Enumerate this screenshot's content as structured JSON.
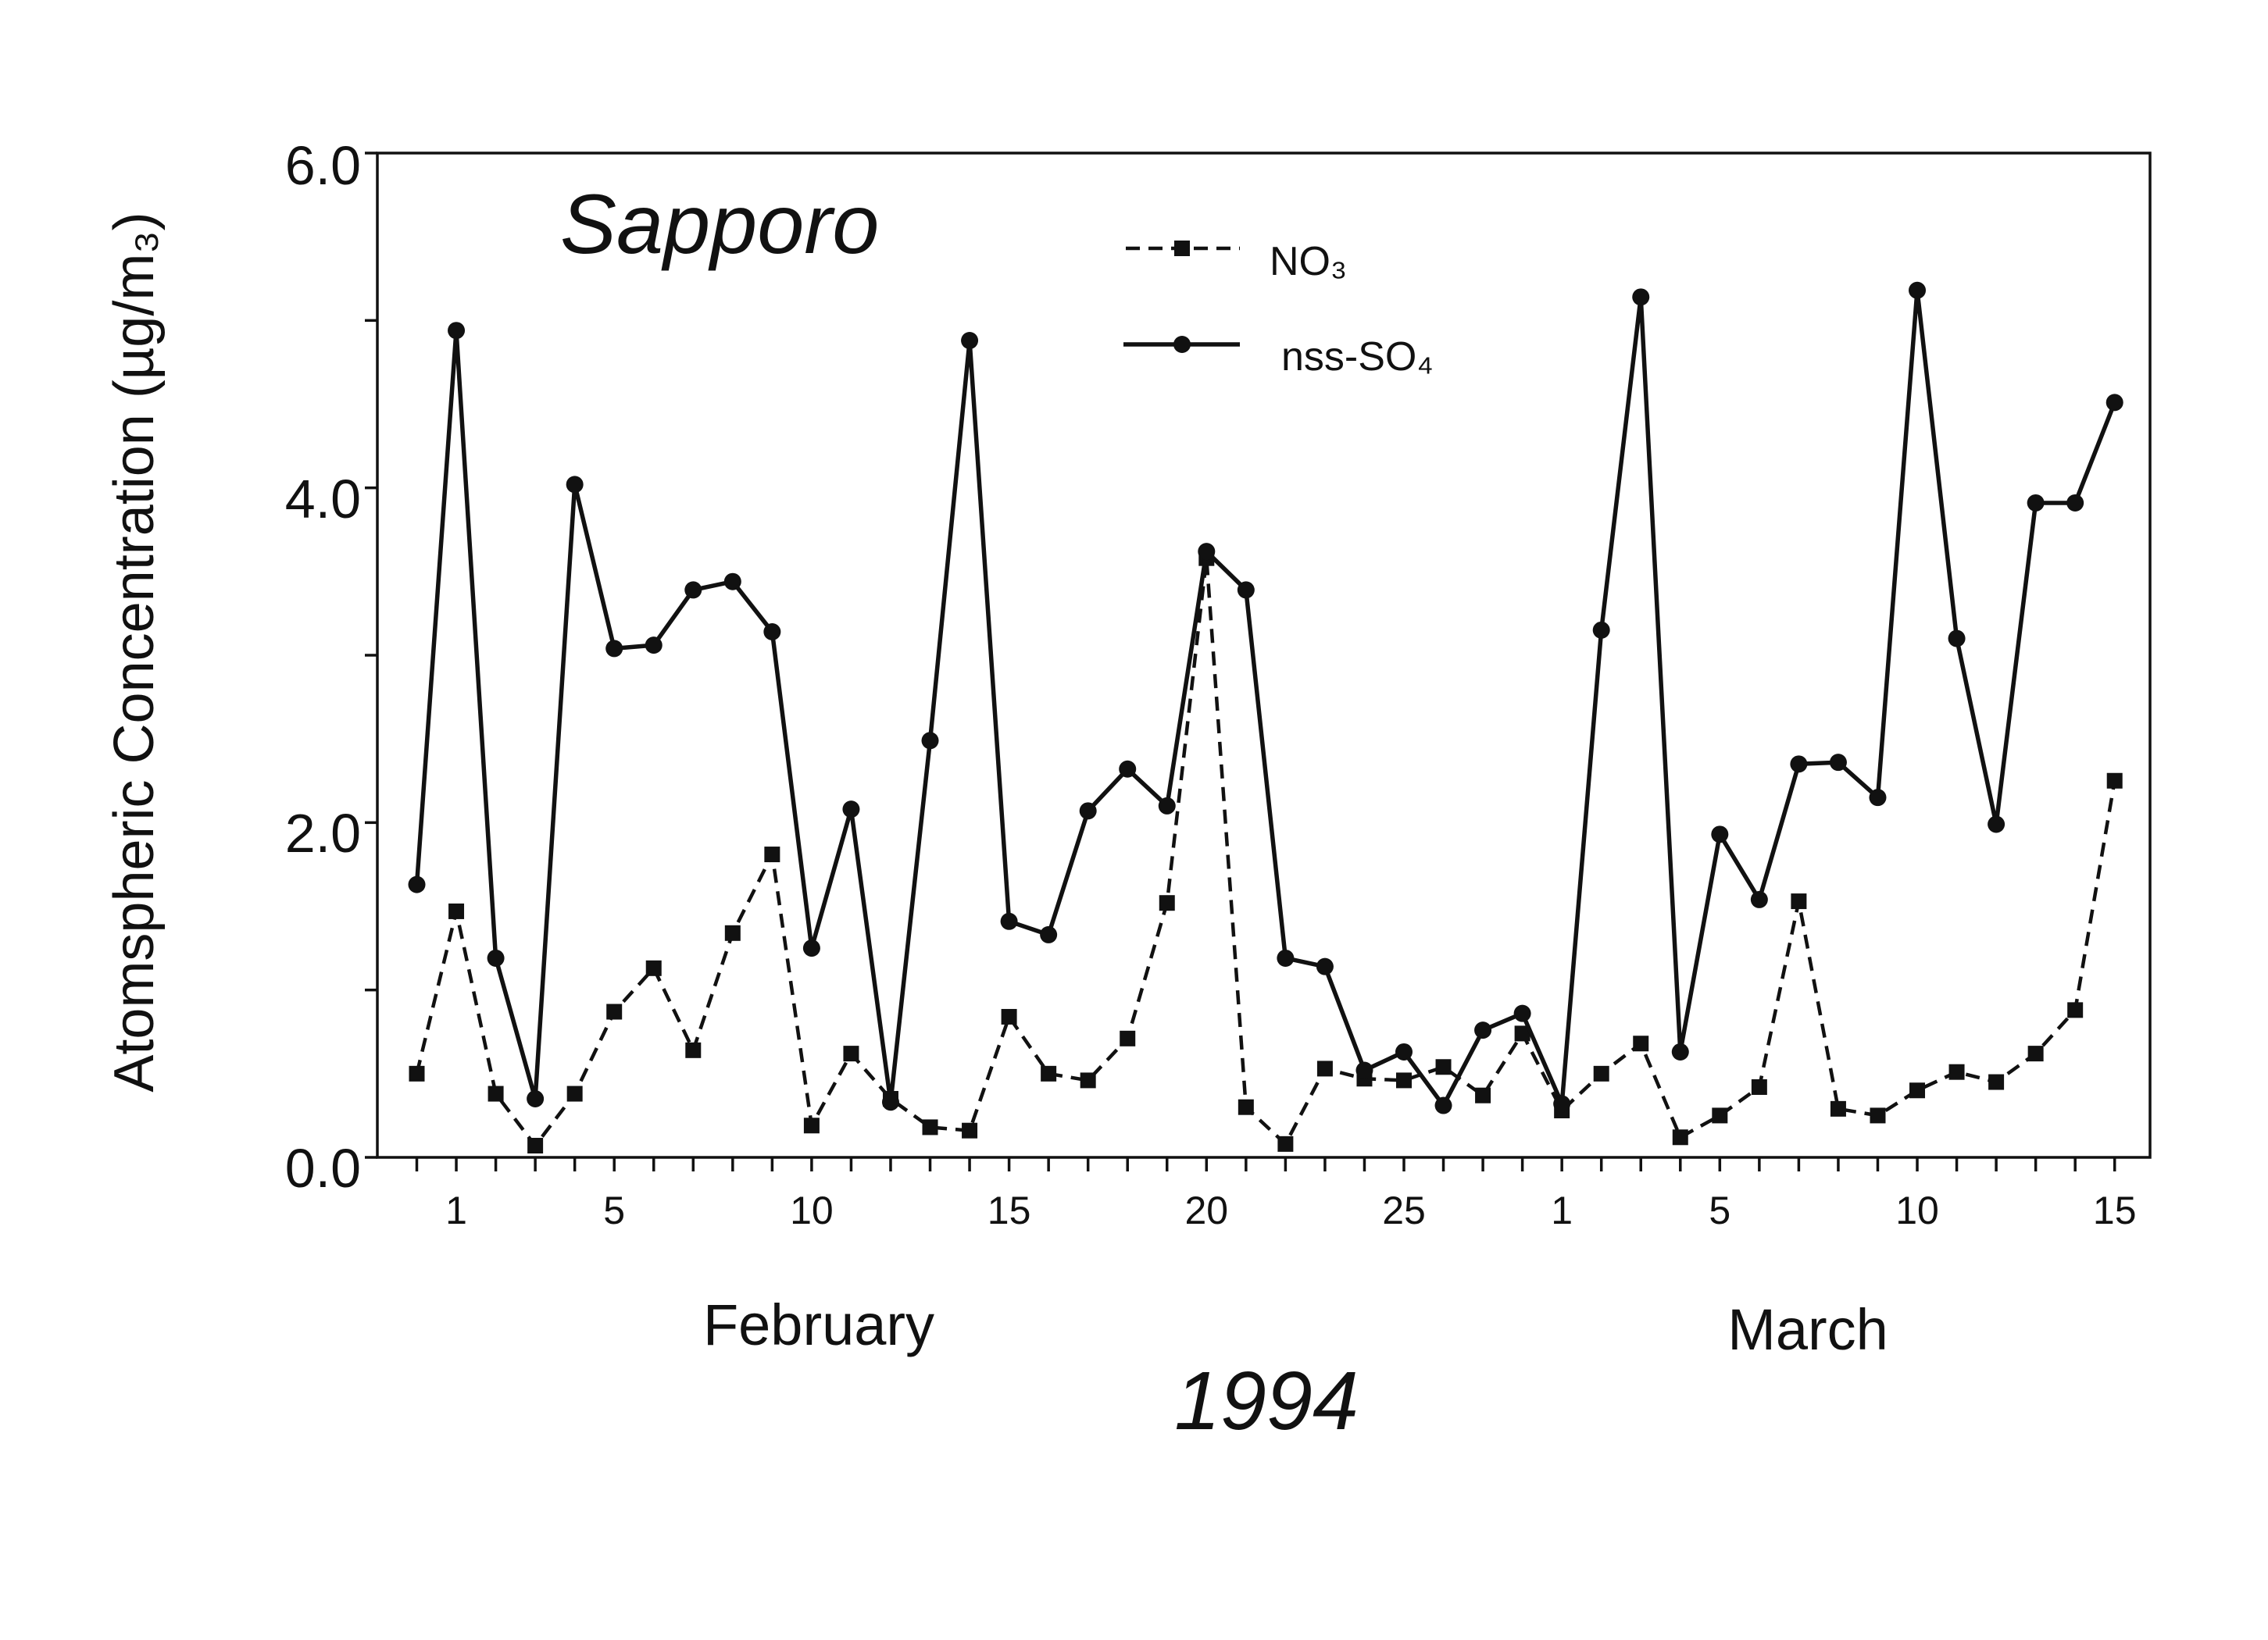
{
  "chart_data": {
    "type": "line",
    "title": "Sapporo",
    "xlabel": "",
    "month_labels": [
      "February",
      "March"
    ],
    "year_label": "1994",
    "ylabel": "Atomspheric Concentration (µg/m₃)",
    "ylim": [
      0,
      6
    ],
    "y_ticks": [
      "0.0",
      "2.0",
      "4.0",
      "6.0"
    ],
    "grid": false,
    "legend_position": "top-center",
    "x": [
      "1994-01-31",
      "1994-02-01",
      "1994-02-02",
      "1994-02-03",
      "1994-02-04",
      "1994-02-05",
      "1994-02-06",
      "1994-02-07",
      "1994-02-08",
      "1994-02-09",
      "1994-02-10",
      "1994-02-11",
      "1994-02-12",
      "1994-02-13",
      "1994-02-14",
      "1994-02-15",
      "1994-02-16",
      "1994-02-17",
      "1994-02-18",
      "1994-02-19",
      "1994-02-20",
      "1994-02-21",
      "1994-02-22",
      "1994-02-23",
      "1994-02-24",
      "1994-02-25",
      "1994-02-26",
      "1994-02-27",
      "1994-02-28",
      "1994-03-01",
      "1994-03-02",
      "1994-03-03",
      "1994-03-04",
      "1994-03-05",
      "1994-03-06",
      "1994-03-07",
      "1994-03-08",
      "1994-03-09",
      "1994-03-10",
      "1994-03-11",
      "1994-03-12",
      "1994-03-13",
      "1994-03-14",
      "1994-03-15"
    ],
    "x_tick_labels": [
      {
        "date": "1994-02-01",
        "label": "1"
      },
      {
        "date": "1994-02-05",
        "label": "5"
      },
      {
        "date": "1994-02-10",
        "label": "10"
      },
      {
        "date": "1994-02-15",
        "label": "15"
      },
      {
        "date": "1994-02-20",
        "label": "20"
      },
      {
        "date": "1994-02-25",
        "label": "25"
      },
      {
        "date": "1994-03-01",
        "label": "1"
      },
      {
        "date": "1994-03-05",
        "label": "5"
      },
      {
        "date": "1994-03-10",
        "label": "10"
      },
      {
        "date": "1994-03-15",
        "label": "15"
      }
    ],
    "series": [
      {
        "name": "NO₃",
        "style": "dashed",
        "marker": "square",
        "color": "#000000",
        "values": [
          0.5,
          1.47,
          0.38,
          0.07,
          0.38,
          0.87,
          1.13,
          0.64,
          1.34,
          1.81,
          0.19,
          0.62,
          0.35,
          0.18,
          0.16,
          0.84,
          0.5,
          0.46,
          0.71,
          1.52,
          3.58,
          0.3,
          0.08,
          0.53,
          0.47,
          0.46,
          0.54,
          0.37,
          0.74,
          0.28,
          0.5,
          0.68,
          0.12,
          0.25,
          0.42,
          1.53,
          0.29,
          0.25,
          0.4,
          0.51,
          0.45,
          0.62,
          0.88,
          2.25
        ]
      },
      {
        "name": "nss-SO₄",
        "style": "solid",
        "marker": "circle",
        "color": "#000000",
        "values": [
          1.63,
          4.94,
          1.19,
          0.35,
          4.02,
          3.04,
          3.06,
          3.39,
          3.44,
          3.14,
          1.25,
          2.08,
          0.33,
          2.49,
          4.88,
          1.41,
          1.33,
          2.07,
          2.32,
          2.1,
          3.62,
          3.39,
          1.19,
          1.14,
          0.52,
          0.63,
          0.31,
          0.76,
          0.86,
          0.32,
          3.15,
          5.14,
          0.63,
          1.93,
          1.54,
          2.35,
          2.36,
          2.15,
          5.18,
          3.1,
          1.99,
          3.91,
          3.91,
          4.51
        ]
      }
    ]
  }
}
